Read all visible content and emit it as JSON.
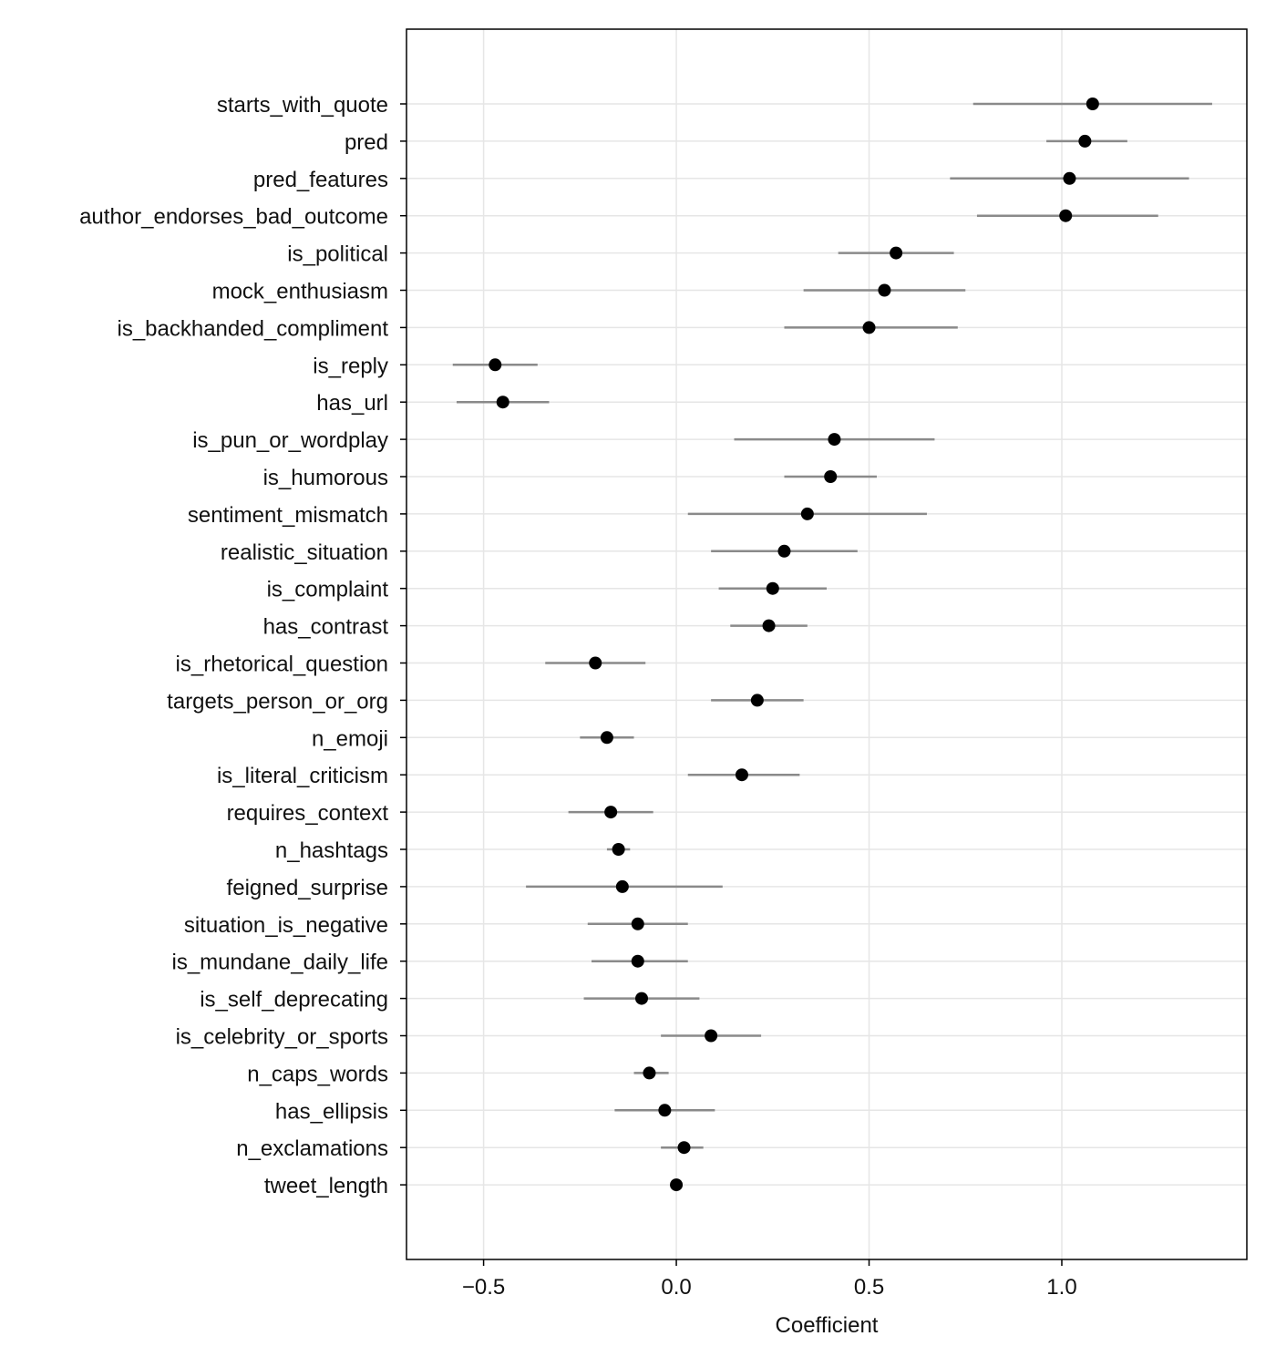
{
  "chart_data": {
    "type": "scatter",
    "title": "",
    "xlabel": "Coefficient",
    "ylabel": "",
    "xlim": [
      -0.7,
      1.48
    ],
    "x_ticks": [
      -0.5,
      0.0,
      0.5,
      1.0
    ],
    "x_tick_labels": [
      "−0.5",
      "0.0",
      "0.5",
      "1.0"
    ],
    "grid": true,
    "series": [
      {
        "points": [
          {
            "label": "starts_with_quote",
            "estimate": 1.08,
            "ci_low": 0.77,
            "ci_high": 1.39
          },
          {
            "label": "pred",
            "estimate": 1.06,
            "ci_low": 0.96,
            "ci_high": 1.17
          },
          {
            "label": "pred_features",
            "estimate": 1.02,
            "ci_low": 0.71,
            "ci_high": 1.33
          },
          {
            "label": "author_endorses_bad_outcome",
            "estimate": 1.01,
            "ci_low": 0.78,
            "ci_high": 1.25
          },
          {
            "label": "is_political",
            "estimate": 0.57,
            "ci_low": 0.42,
            "ci_high": 0.72
          },
          {
            "label": "mock_enthusiasm",
            "estimate": 0.54,
            "ci_low": 0.33,
            "ci_high": 0.75
          },
          {
            "label": "is_backhanded_compliment",
            "estimate": 0.5,
            "ci_low": 0.28,
            "ci_high": 0.73
          },
          {
            "label": "is_reply",
            "estimate": -0.47,
            "ci_low": -0.58,
            "ci_high": -0.36
          },
          {
            "label": "has_url",
            "estimate": -0.45,
            "ci_low": -0.57,
            "ci_high": -0.33
          },
          {
            "label": "is_pun_or_wordplay",
            "estimate": 0.41,
            "ci_low": 0.15,
            "ci_high": 0.67
          },
          {
            "label": "is_humorous",
            "estimate": 0.4,
            "ci_low": 0.28,
            "ci_high": 0.52
          },
          {
            "label": "sentiment_mismatch",
            "estimate": 0.34,
            "ci_low": 0.03,
            "ci_high": 0.65
          },
          {
            "label": "realistic_situation",
            "estimate": 0.28,
            "ci_low": 0.09,
            "ci_high": 0.47
          },
          {
            "label": "is_complaint",
            "estimate": 0.25,
            "ci_low": 0.11,
            "ci_high": 0.39
          },
          {
            "label": "has_contrast",
            "estimate": 0.24,
            "ci_low": 0.14,
            "ci_high": 0.34
          },
          {
            "label": "is_rhetorical_question",
            "estimate": -0.21,
            "ci_low": -0.34,
            "ci_high": -0.08
          },
          {
            "label": "targets_person_or_org",
            "estimate": 0.21,
            "ci_low": 0.09,
            "ci_high": 0.33
          },
          {
            "label": "n_emoji",
            "estimate": -0.18,
            "ci_low": -0.25,
            "ci_high": -0.11
          },
          {
            "label": "is_literal_criticism",
            "estimate": 0.17,
            "ci_low": 0.03,
            "ci_high": 0.32
          },
          {
            "label": "requires_context",
            "estimate": -0.17,
            "ci_low": -0.28,
            "ci_high": -0.06
          },
          {
            "label": "n_hashtags",
            "estimate": -0.15,
            "ci_low": -0.18,
            "ci_high": -0.12
          },
          {
            "label": "feigned_surprise",
            "estimate": -0.14,
            "ci_low": -0.39,
            "ci_high": 0.12
          },
          {
            "label": "situation_is_negative",
            "estimate": -0.1,
            "ci_low": -0.23,
            "ci_high": 0.03
          },
          {
            "label": "is_mundane_daily_life",
            "estimate": -0.1,
            "ci_low": -0.22,
            "ci_high": 0.03
          },
          {
            "label": "is_self_deprecating",
            "estimate": -0.09,
            "ci_low": -0.24,
            "ci_high": 0.06
          },
          {
            "label": "is_celebrity_or_sports",
            "estimate": 0.09,
            "ci_low": -0.04,
            "ci_high": 0.22
          },
          {
            "label": "n_caps_words",
            "estimate": -0.07,
            "ci_low": -0.11,
            "ci_high": -0.02
          },
          {
            "label": "has_ellipsis",
            "estimate": -0.03,
            "ci_low": -0.16,
            "ci_high": 0.1
          },
          {
            "label": "n_exclamations",
            "estimate": 0.02,
            "ci_low": -0.04,
            "ci_high": 0.07
          },
          {
            "label": "tweet_length",
            "estimate": 0.0,
            "ci_low": 0.0,
            "ci_high": 0.0
          }
        ]
      }
    ]
  }
}
